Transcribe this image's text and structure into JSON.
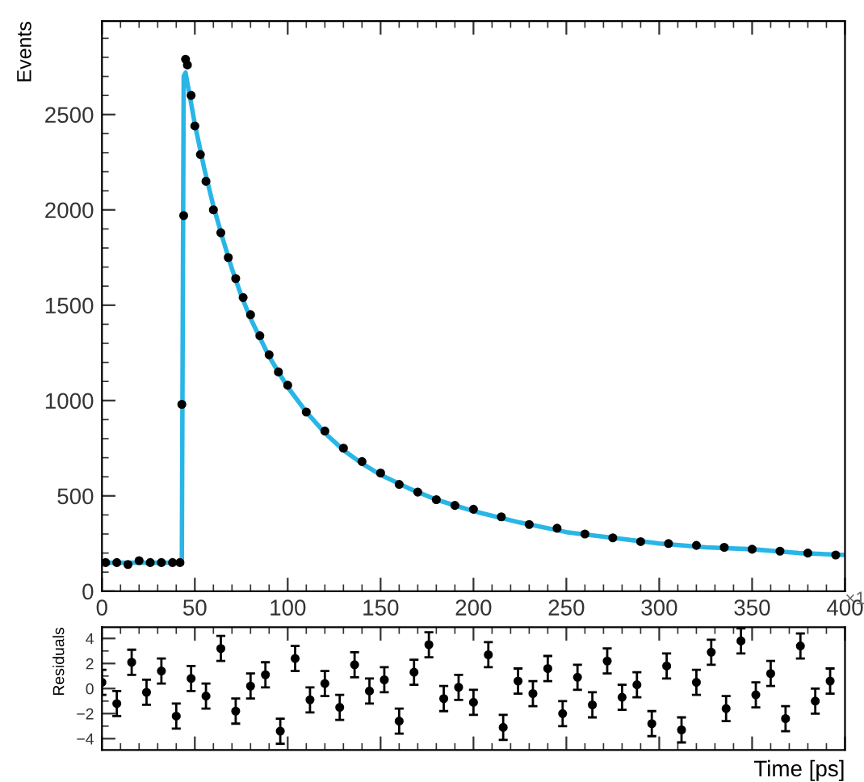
{
  "chart_data": [
    {
      "type": "scatter",
      "ylabel": "Events",
      "annotations": [
        "×1"
      ],
      "xlim": [
        0,
        400
      ],
      "ylim": [
        0,
        2990
      ],
      "xticks": [
        0,
        50,
        100,
        150,
        200,
        250,
        300,
        350,
        400
      ],
      "yticks": [
        0,
        500,
        1000,
        1500,
        2000,
        2500
      ],
      "grid": false,
      "legend": false,
      "series": [
        {
          "marker": "circle",
          "color": "#000000",
          "x": [
            2,
            8,
            14,
            20,
            26,
            32,
            38,
            42,
            43,
            44,
            45,
            46,
            48,
            50,
            53,
            56,
            60,
            64,
            68,
            72,
            76,
            80,
            85,
            90,
            95,
            100,
            110,
            120,
            130,
            140,
            150,
            160,
            170,
            180,
            190,
            200,
            215,
            230,
            245,
            260,
            275,
            290,
            305,
            320,
            335,
            350,
            365,
            380,
            395
          ],
          "values": [
            150,
            150,
            140,
            160,
            150,
            150,
            150,
            150,
            980,
            1970,
            2790,
            2760,
            2600,
            2440,
            2290,
            2150,
            2000,
            1880,
            1750,
            1640,
            1540,
            1450,
            1340,
            1240,
            1150,
            1080,
            940,
            840,
            750,
            680,
            620,
            560,
            520,
            480,
            450,
            430,
            390,
            350,
            330,
            300,
            280,
            260,
            250,
            240,
            230,
            220,
            210,
            200,
            190
          ]
        },
        {
          "type": "line",
          "marker": "none",
          "color": "#29b6e6",
          "line_style": "solid",
          "x": [
            0,
            43,
            44,
            45,
            50,
            55,
            60,
            65,
            70,
            75,
            80,
            90,
            100,
            110,
            120,
            130,
            140,
            150,
            165,
            180,
            200,
            225,
            250,
            275,
            300,
            325,
            350,
            375,
            400
          ],
          "values": [
            150,
            150,
            2700,
            2720,
            2450,
            2220,
            2020,
            1850,
            1690,
            1550,
            1430,
            1230,
            1070,
            940,
            830,
            740,
            670,
            610,
            540,
            480,
            420,
            360,
            310,
            280,
            250,
            230,
            220,
            200,
            190
          ]
        }
      ]
    },
    {
      "type": "scatter",
      "xlabel": "Time [ps]",
      "ylabel": "Residuals",
      "xlim": [
        0,
        400
      ],
      "ylim": [
        -4.9,
        4.9
      ],
      "xticks": [
        0,
        50,
        100,
        150,
        200,
        250,
        300,
        350,
        400
      ],
      "yticks": [
        4,
        2,
        0,
        {
          "value": -2,
          "label": "−2"
        },
        {
          "value": -4,
          "label": "−4"
        }
      ],
      "tick_labels": "y",
      "grid": false,
      "legend": false,
      "marker": "circle",
      "series": [
        {
          "color": "#000000",
          "x": [
            0,
            8,
            16,
            24,
            32,
            40,
            48,
            56,
            64,
            72,
            80,
            88,
            96,
            104,
            112,
            120,
            128,
            136,
            144,
            152,
            160,
            168,
            176,
            184,
            192,
            200,
            208,
            216,
            224,
            232,
            240,
            248,
            256,
            264,
            272,
            280,
            288,
            296,
            304,
            312,
            320,
            328,
            336,
            344,
            352,
            360,
            368,
            376,
            384,
            392
          ],
          "values": [
            0.5,
            -1.2,
            2.1,
            -0.3,
            1.4,
            -2.2,
            0.8,
            -0.6,
            3.2,
            -1.8,
            0.2,
            1.1,
            -3.4,
            2.4,
            -0.9,
            0.4,
            -1.5,
            1.9,
            -0.2,
            0.7,
            -2.6,
            1.3,
            3.5,
            -0.8,
            0.1,
            -1.1,
            2.7,
            -3.1,
            0.6,
            -0.4,
            1.6,
            -2.0,
            0.9,
            -1.3,
            2.2,
            -0.7,
            0.3,
            -2.8,
            1.8,
            -3.3,
            0.5,
            2.9,
            -1.6,
            3.8,
            -0.5,
            1.2,
            -2.4,
            3.4,
            -1.0,
            0.6
          ],
          "errors": [
            1,
            1,
            1,
            1,
            1,
            1,
            1,
            1,
            1,
            1,
            1,
            1,
            1,
            1,
            1,
            1,
            1,
            1,
            1,
            1,
            1,
            1,
            1,
            1,
            1,
            1,
            1,
            1,
            1,
            1,
            1,
            1,
            1,
            1,
            1,
            1,
            1,
            1,
            1,
            1,
            1,
            1,
            1,
            1,
            1,
            1,
            1,
            1,
            1,
            1
          ]
        }
      ]
    }
  ]
}
